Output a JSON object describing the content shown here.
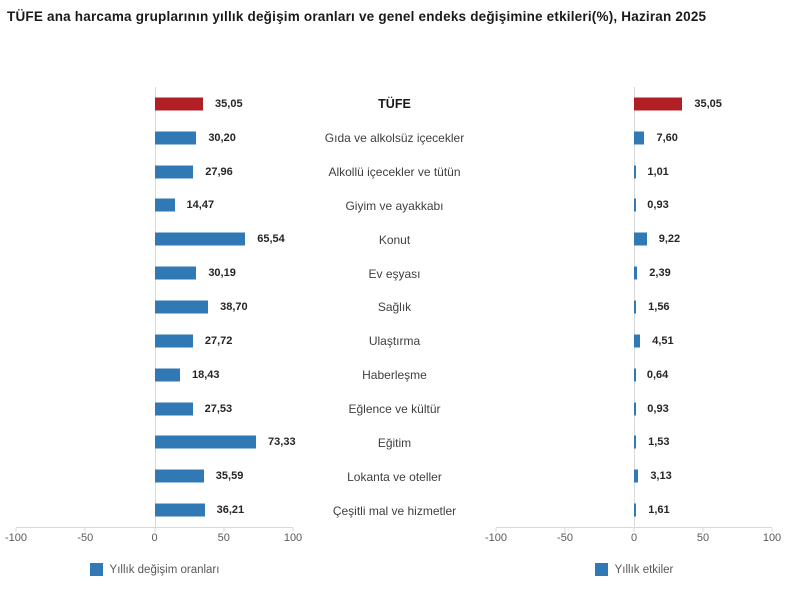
{
  "title": "TÜFE ana harcama gruplarının yıllık değişim oranları ve genel endeks değişimine etkileri(%), Haziran 2025",
  "chart_data": {
    "type": "bar",
    "orientation": "horizontal",
    "categories": [
      "TÜFE",
      "Gıda ve alkolsüz içecekler",
      "Alkollü içecekler ve tütün",
      "Giyim ve ayakkabı",
      "Konut",
      "Ev eşyası",
      "Sağlık",
      "Ulaştırma",
      "Haberleşme",
      "Eğlence ve kültür",
      "Eğitim",
      "Lokanta ve oteller",
      "Çeşitli mal ve hizmetler"
    ],
    "highlight_category": "TÜFE",
    "series": [
      {
        "name": "Yıllık değişim oranları",
        "values": [
          35.05,
          30.2,
          27.96,
          14.47,
          65.54,
          30.19,
          38.7,
          27.72,
          18.43,
          27.53,
          73.33,
          35.59,
          36.21
        ],
        "labels": [
          "35,05",
          "30,20",
          "27,96",
          "14,47",
          "65,54",
          "30,19",
          "38,70",
          "27,72",
          "18,43",
          "27,53",
          "73,33",
          "35,59",
          "36,21"
        ]
      },
      {
        "name": "Yıllık etkiler",
        "values": [
          35.05,
          7.6,
          1.01,
          0.93,
          9.22,
          2.39,
          1.56,
          4.51,
          0.64,
          0.93,
          1.53,
          3.13,
          1.61
        ],
        "labels": [
          "35,05",
          "7,60",
          "1,01",
          "0,93",
          "9,22",
          "2,39",
          "1,56",
          "4,51",
          "0,64",
          "0,93",
          "1,53",
          "3,13",
          "1,61"
        ]
      }
    ],
    "xlim": [
      -100,
      100
    ],
    "x_ticks": [
      "-100",
      "-50",
      "0",
      "50",
      "100"
    ],
    "grid": "zero-line-only",
    "legend_position": "bottom",
    "colors": {
      "bar_blue": "#3179B5",
      "bar_red": "#B01F24",
      "axis_line": "#D9D9D9",
      "tick_text": "#595959",
      "label_text": "#404040",
      "value_text": "#262626"
    }
  }
}
